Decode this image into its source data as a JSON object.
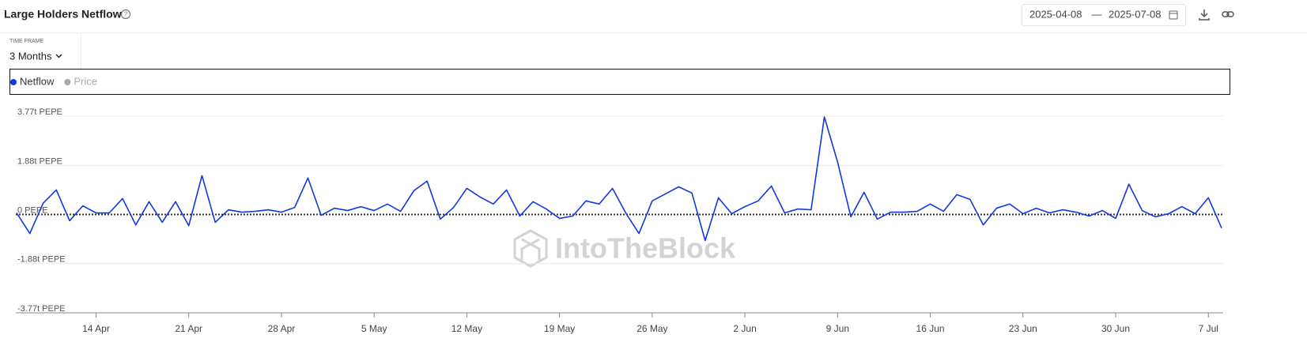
{
  "header": {
    "title": "Large Holders Netflow",
    "date_start": "2025-04-08",
    "date_separator": "—",
    "date_end": "2025-07-08"
  },
  "timeframe": {
    "label": "TIME FRAME",
    "value": "3 Months"
  },
  "watermark": "IntoTheBlock",
  "chart_data": {
    "type": "line",
    "series": [
      {
        "name": "Netflow",
        "color": "#1238e0",
        "values": [
          0.06,
          -0.73,
          0.43,
          0.94,
          -0.24,
          0.33,
          0.06,
          0.06,
          0.61,
          -0.4,
          0.49,
          -0.3,
          0.49,
          -0.43,
          1.49,
          -0.3,
          0.18,
          0.09,
          0.12,
          0.18,
          0.09,
          0.27,
          1.4,
          -0.03,
          0.24,
          0.15,
          0.3,
          0.15,
          0.4,
          0.12,
          0.91,
          1.28,
          -0.18,
          0.27,
          1.0,
          0.67,
          0.4,
          0.94,
          -0.06,
          0.49,
          0.21,
          -0.15,
          -0.06,
          0.52,
          0.4,
          1.0,
          0.06,
          -0.73,
          0.52,
          0.79,
          1.06,
          0.82,
          -1.0,
          0.64,
          0.03,
          0.3,
          0.52,
          1.09,
          0.06,
          0.21,
          0.18,
          3.74,
          2.01,
          -0.09,
          0.85,
          -0.18,
          0.09,
          0.09,
          0.12,
          0.4,
          0.12,
          0.76,
          0.58,
          -0.4,
          0.24,
          0.4,
          0.03,
          0.24,
          0.06,
          0.18,
          0.09,
          -0.06,
          0.15,
          -0.15,
          1.16,
          0.15,
          -0.09,
          0.03,
          0.3,
          0.03,
          0.64,
          -0.52
        ]
      }
    ],
    "hidden_series": [
      {
        "name": "Price",
        "color": "#a9a9a9"
      }
    ],
    "xlim": [
      0,
      91
    ],
    "xticks": [
      {
        "value": 6,
        "label": "14 Apr"
      },
      {
        "value": 13,
        "label": "21 Apr"
      },
      {
        "value": 20,
        "label": "28 Apr"
      },
      {
        "value": 27,
        "label": "5 May"
      },
      {
        "value": 34,
        "label": "12 May"
      },
      {
        "value": 41,
        "label": "19 May"
      },
      {
        "value": 48,
        "label": "26 May"
      },
      {
        "value": 55,
        "label": "2 Jun"
      },
      {
        "value": 62,
        "label": "9 Jun"
      },
      {
        "value": 69,
        "label": "16 Jun"
      },
      {
        "value": 76,
        "label": "23 Jun"
      },
      {
        "value": 83,
        "label": "30 Jun"
      },
      {
        "value": 90,
        "label": "7 Jul"
      }
    ],
    "ylim": [
      -3.77,
      3.77
    ],
    "yticks": [
      {
        "value": 3.77,
        "label": "3.77t PEPE"
      },
      {
        "value": 1.88,
        "label": "1.88t PEPE"
      },
      {
        "value": 0,
        "label": "0 PEPE"
      },
      {
        "value": -1.88,
        "label": "-1.88t PEPE"
      },
      {
        "value": -3.77,
        "label": "-3.77t PEPE"
      }
    ],
    "grid": true
  }
}
